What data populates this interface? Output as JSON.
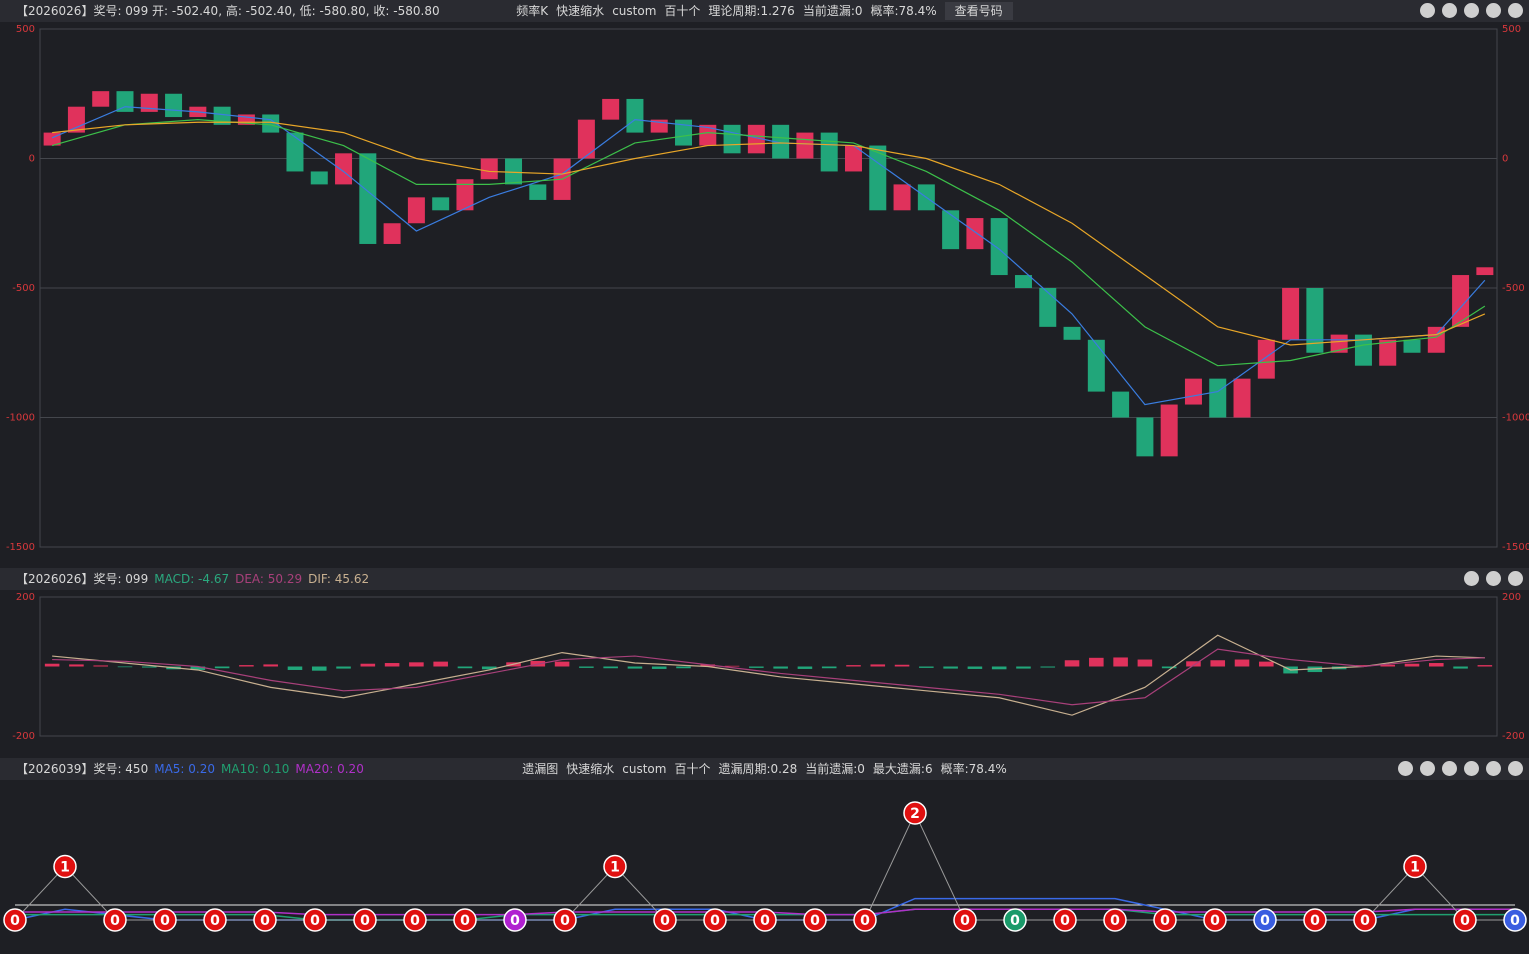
{
  "chart_data": [
    {
      "type": "candlestick",
      "title": "【2026026】奖号: 099  开: -502.40, 高: -502.40, 低: -580.80, 收: -580.80",
      "header_items": [
        "频率K",
        "快速缩水",
        "custom",
        "百十个",
        "理论周期:1.276",
        "当前遗漏:0",
        "概率:78.4%"
      ],
      "button": "查看号码",
      "open": [
        50,
        100,
        200,
        260,
        180,
        250,
        160,
        200,
        130,
        170,
        100,
        -50,
        -100,
        20,
        -330,
        -250,
        -150,
        -200,
        -80,
        0,
        -100,
        -160,
        0,
        150,
        230,
        100,
        150,
        50,
        130,
        20,
        130,
        0,
        100,
        -50,
        50,
        -200,
        -100,
        -200,
        -350,
        -230,
        -450,
        -500,
        -650,
        -700,
        -900,
        -1000,
        -1150,
        -950,
        -850,
        -1000,
        -850,
        -700,
        -500,
        -750,
        -680,
        -800,
        -700,
        -750,
        -650,
        -450
      ],
      "close": [
        100,
        200,
        260,
        180,
        250,
        160,
        200,
        130,
        170,
        100,
        -50,
        -100,
        20,
        -330,
        -250,
        -150,
        -200,
        -80,
        0,
        -100,
        -160,
        0,
        150,
        230,
        100,
        150,
        50,
        130,
        20,
        130,
        0,
        100,
        -50,
        50,
        -200,
        -100,
        -200,
        -350,
        -230,
        -450,
        -500,
        -650,
        -700,
        -900,
        -1000,
        -1150,
        -950,
        -850,
        -1000,
        -850,
        -700,
        -500,
        -750,
        -680,
        -800,
        -700,
        -750,
        -650,
        -450,
        -420
      ],
      "up_color": "#e0325c",
      "down_color": "#21a67a",
      "series": [
        {
          "color": "#3a7de0",
          "x": [
            0,
            3,
            6,
            9,
            12,
            15,
            18,
            21,
            24,
            27,
            30,
            33,
            36,
            39,
            42,
            45,
            48,
            51,
            54,
            57,
            59
          ],
          "values": [
            80,
            200,
            180,
            150,
            -50,
            -280,
            -150,
            -60,
            150,
            120,
            60,
            50,
            -150,
            -350,
            -600,
            -950,
            -900,
            -700,
            -700,
            -680,
            -470
          ]
        },
        {
          "color": "#3cc04a",
          "x": [
            0,
            3,
            6,
            9,
            12,
            15,
            18,
            21,
            24,
            27,
            30,
            33,
            36,
            39,
            42,
            45,
            48,
            51,
            54,
            57,
            59
          ],
          "values": [
            50,
            130,
            150,
            130,
            50,
            -100,
            -100,
            -80,
            60,
            100,
            80,
            60,
            -50,
            -200,
            -400,
            -650,
            -800,
            -780,
            -720,
            -690,
            -570
          ]
        },
        {
          "color": "#e8a628",
          "x": [
            0,
            3,
            6,
            9,
            12,
            15,
            18,
            21,
            24,
            27,
            30,
            33,
            36,
            39,
            42,
            45,
            48,
            51,
            54,
            57,
            59
          ],
          "values": [
            100,
            130,
            140,
            140,
            100,
            0,
            -50,
            -60,
            0,
            50,
            60,
            50,
            0,
            -100,
            -250,
            -450,
            -650,
            -720,
            -700,
            -680,
            -600
          ]
        }
      ],
      "ylim": [
        -1500,
        500
      ],
      "yticks": [
        -1500,
        -1000,
        -500,
        0,
        500
      ],
      "grid": true,
      "tick_color": "#d8383c"
    },
    {
      "type": "bar",
      "title": "【2026026】奖号: 099",
      "header_stats": [
        {
          "text": "MACD: -4.67",
          "color": "#2aa87e"
        },
        {
          "text": "DEA: 50.29",
          "color": "#a8407a"
        },
        {
          "text": "DIF: 45.62",
          "color": "#c8b090"
        }
      ],
      "values": [
        8,
        6,
        3,
        -2,
        -3,
        -8,
        -10,
        -5,
        4,
        6,
        -10,
        -12,
        -6,
        8,
        10,
        12,
        14,
        -5,
        -8,
        12,
        16,
        14,
        -4,
        -5,
        -6,
        -7,
        -5,
        6,
        2,
        -4,
        -6,
        -7,
        -5,
        4,
        6,
        5,
        -4,
        -6,
        -7,
        -8,
        -6,
        -3,
        18,
        25,
        26,
        20,
        -5,
        15,
        18,
        20,
        14,
        -20,
        -16,
        -8,
        4,
        5,
        8,
        10,
        -6,
        4
      ],
      "up_color": "#e0325c",
      "down_color": "#21a67a",
      "series": [
        {
          "color": "#c8b090",
          "x": [
            0,
            3,
            6,
            9,
            12,
            15,
            18,
            21,
            24,
            27,
            30,
            33,
            36,
            39,
            42,
            45,
            48,
            51,
            54,
            57,
            59
          ],
          "values": [
            30,
            10,
            -10,
            -60,
            -90,
            -50,
            -10,
            40,
            10,
            0,
            -30,
            -50,
            -70,
            -90,
            -140,
            -60,
            90,
            -10,
            0,
            30,
            25
          ]
        },
        {
          "color": "#a8407a",
          "x": [
            0,
            3,
            6,
            9,
            12,
            15,
            18,
            21,
            24,
            27,
            30,
            33,
            36,
            39,
            42,
            45,
            48,
            51,
            54,
            57,
            59
          ],
          "values": [
            20,
            15,
            0,
            -40,
            -70,
            -60,
            -20,
            20,
            30,
            5,
            -20,
            -40,
            -60,
            -80,
            -110,
            -90,
            50,
            20,
            0,
            20,
            25
          ]
        }
      ],
      "ylim": [
        -200,
        200
      ],
      "yticks": [
        -200,
        200
      ],
      "grid": true,
      "tick_color": "#d8383c"
    },
    {
      "type": "line",
      "title": "【2026039】奖号: 450",
      "header_stats": [
        {
          "text": "MA5: 0.20",
          "color": "#3a6ae8"
        },
        {
          "text": "MA10: 0.10",
          "color": "#20a070"
        },
        {
          "text": "MA20: 0.20",
          "color": "#b030c8"
        }
      ],
      "header_items": [
        "遗漏图",
        "快速缩水",
        "custom",
        "百十个",
        "遗漏周期:0.28",
        "当前遗漏:0",
        "最大遗漏:6",
        "概率:78.4%"
      ],
      "values": [
        0,
        1,
        0,
        0,
        0,
        0,
        0,
        0,
        0,
        0,
        0,
        0,
        1,
        0,
        0,
        0,
        0,
        0,
        2,
        0,
        0,
        0,
        0,
        0,
        0,
        0,
        0,
        0,
        1,
        0,
        0
      ],
      "marker_colors": [
        "#e01010",
        "#e01010",
        "#e01010",
        "#e01010",
        "#e01010",
        "#e01010",
        "#e01010",
        "#e01010",
        "#e01010",
        "#e01010",
        "#b020d0",
        "#e01010",
        "#e01010",
        "#e01010",
        "#e01010",
        "#e01010",
        "#e01010",
        "#e01010",
        "#e01010",
        "#e01010",
        "#1a9a6a",
        "#e01010",
        "#e01010",
        "#e01010",
        "#e01010",
        "#3a5de0",
        "#e01010",
        "#e01010",
        "#e01010",
        "#e01010",
        "#3a5de0"
      ],
      "line_color": "#9a9a9a",
      "series": [
        {
          "color": "#3a6ae8",
          "values": [
            0,
            0.2,
            0.1,
            0,
            0,
            0,
            0,
            0,
            0,
            0,
            0,
            0,
            0.2,
            0.2,
            0.2,
            0,
            0,
            0,
            0.4,
            0.4,
            0.4,
            0.4,
            0.4,
            0.2,
            0,
            0,
            0,
            0,
            0.2,
            0.2,
            0.2
          ]
        },
        {
          "color": "#20a070",
          "values": [
            0.1,
            0.1,
            0.1,
            0.1,
            0.1,
            0.1,
            0,
            0,
            0,
            0,
            0.1,
            0.1,
            0.1,
            0.1,
            0.1,
            0.1,
            0.1,
            0.1,
            0.2,
            0.2,
            0.2,
            0.2,
            0.2,
            0.1,
            0.1,
            0.1,
            0.1,
            0.1,
            0.1,
            0.1,
            0.1
          ]
        },
        {
          "color": "#b030c8",
          "values": [
            0.15,
            0.15,
            0.15,
            0.15,
            0.15,
            0.15,
            0.1,
            0.1,
            0.1,
            0.1,
            0.1,
            0.15,
            0.15,
            0.15,
            0.15,
            0.15,
            0.1,
            0.1,
            0.2,
            0.2,
            0.2,
            0.2,
            0.2,
            0.15,
            0.15,
            0.15,
            0.15,
            0.15,
            0.2,
            0.2,
            0.2
          ]
        }
      ],
      "ylim": [
        0,
        2
      ]
    }
  ]
}
